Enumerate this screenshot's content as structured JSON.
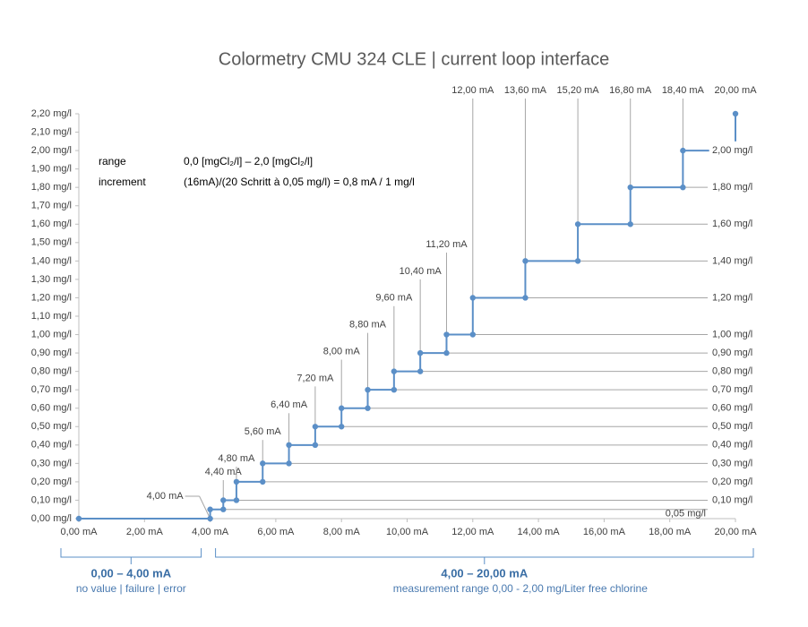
{
  "chart_data": {
    "type": "line",
    "title": "Colormetry CMU 324 CLE  |  current loop interface",
    "xlim": [
      0,
      20
    ],
    "ylim": [
      0,
      2.2
    ],
    "xticks": [
      {
        "value": 0,
        "label": "0,00 mA"
      },
      {
        "value": 2,
        "label": "2,00 mA"
      },
      {
        "value": 4,
        "label": "4,00 mA"
      },
      {
        "value": 6,
        "label": "6,00 mA"
      },
      {
        "value": 8,
        "label": "8,00 mA"
      },
      {
        "value": 10,
        "label": "10,00 mA"
      },
      {
        "value": 12,
        "label": "12,00 mA"
      },
      {
        "value": 14,
        "label": "14,00 mA"
      },
      {
        "value": 16,
        "label": "16,00 mA"
      },
      {
        "value": 18,
        "label": "18,00 mA"
      },
      {
        "value": 20,
        "label": "20,00 mA"
      }
    ],
    "yticks": [
      {
        "value": 0,
        "label": "0,00 mg/l"
      },
      {
        "value": 0.1,
        "label": "0,10 mg/l"
      },
      {
        "value": 0.2,
        "label": "0,20 mg/l"
      },
      {
        "value": 0.3,
        "label": "0,30 mg/l"
      },
      {
        "value": 0.4,
        "label": "0,40 mg/l"
      },
      {
        "value": 0.5,
        "label": "0,50 mg/l"
      },
      {
        "value": 0.6,
        "label": "0,60 mg/l"
      },
      {
        "value": 0.7,
        "label": "0,70 mg/l"
      },
      {
        "value": 0.8,
        "label": "0,80 mg/l"
      },
      {
        "value": 0.9,
        "label": "0,90 mg/l"
      },
      {
        "value": 1.0,
        "label": "1,00 mg/l"
      },
      {
        "value": 1.1,
        "label": "1,10 mg/l"
      },
      {
        "value": 1.2,
        "label": "1,20 mg/l"
      },
      {
        "value": 1.3,
        "label": "1,30 mg/l"
      },
      {
        "value": 1.4,
        "label": "1,40 mg/l"
      },
      {
        "value": 1.5,
        "label": "1,50 mg/l"
      },
      {
        "value": 1.6,
        "label": "1,60 mg/l"
      },
      {
        "value": 1.7,
        "label": "1,70 mg/l"
      },
      {
        "value": 1.8,
        "label": "1,80 mg/l"
      },
      {
        "value": 1.9,
        "label": "1,90 mg/l"
      },
      {
        "value": 2.0,
        "label": "2,00 mg/l"
      },
      {
        "value": 2.1,
        "label": "2,10 mg/l"
      },
      {
        "value": 2.2,
        "label": "2,20 mg/l"
      }
    ],
    "series": [
      {
        "color": "#5b8fc7",
        "x": [
          0,
          4,
          4,
          4.4,
          4.4,
          4.8,
          4.8,
          5.6,
          5.6,
          6.4,
          6.4,
          7.2,
          7.2,
          8,
          8,
          8.8,
          8.8,
          9.6,
          9.6,
          10.4,
          10.4,
          11.2,
          11.2,
          12,
          12,
          13.6,
          13.6,
          15.2,
          15.2,
          16.8,
          16.8,
          18.4,
          18.4,
          19.2
        ],
        "values": [
          0,
          0,
          0.05,
          0.05,
          0.1,
          0.1,
          0.2,
          0.2,
          0.3,
          0.3,
          0.4,
          0.4,
          0.5,
          0.5,
          0.6,
          0.6,
          0.7,
          0.7,
          0.8,
          0.8,
          0.9,
          0.9,
          1.0,
          1.0,
          1.2,
          1.2,
          1.4,
          1.4,
          1.6,
          1.6,
          1.8,
          1.8,
          2.0,
          2.0
        ]
      },
      {
        "color": "#5b8fc7",
        "x": [
          20,
          20
        ],
        "values": [
          2.2,
          2.05
        ]
      }
    ],
    "current_labels": [
      {
        "value": 4,
        "label": "4,00 mA"
      },
      {
        "value": 4.4,
        "label": "4,40 mA"
      },
      {
        "value": 4.8,
        "label": "4,80 mA"
      },
      {
        "value": 5.6,
        "label": "5,60 mA"
      },
      {
        "value": 6.4,
        "label": "6,40 mA"
      },
      {
        "value": 7.2,
        "label": "7,20 mA"
      },
      {
        "value": 8,
        "label": "8,00 mA"
      },
      {
        "value": 8.8,
        "label": "8,80 mA"
      },
      {
        "value": 9.6,
        "label": "9,60 mA"
      },
      {
        "value": 10.4,
        "label": "10,40 mA"
      },
      {
        "value": 11.2,
        "label": "11,20 mA"
      },
      {
        "value": 12,
        "label": "12,00 mA"
      },
      {
        "value": 13.6,
        "label": "13,60 mA"
      },
      {
        "value": 15.2,
        "label": "15,20 mA"
      },
      {
        "value": 16.8,
        "label": "16,80 mA"
      },
      {
        "value": 18.4,
        "label": "18,40 mA"
      },
      {
        "value": 20,
        "label": "20,00 mA"
      }
    ],
    "level_labels": [
      {
        "value": 0.05,
        "label": "0,05 mg/l"
      },
      {
        "value": 0.1,
        "label": "0,10 mg/l"
      },
      {
        "value": 0.2,
        "label": "0,20 mg/l"
      },
      {
        "value": 0.3,
        "label": "0,30 mg/l"
      },
      {
        "value": 0.4,
        "label": "0,40 mg/l"
      },
      {
        "value": 0.5,
        "label": "0,50 mg/l"
      },
      {
        "value": 0.6,
        "label": "0,60 mg/l"
      },
      {
        "value": 0.7,
        "label": "0,70 mg/l"
      },
      {
        "value": 0.8,
        "label": "0,80 mg/l"
      },
      {
        "value": 0.9,
        "label": "0,90 mg/l"
      },
      {
        "value": 1.0,
        "label": "1,00 mg/l"
      },
      {
        "value": 1.2,
        "label": "1,20 mg/l"
      },
      {
        "value": 1.4,
        "label": "1,40 mg/l"
      },
      {
        "value": 1.6,
        "label": "1,60 mg/l"
      },
      {
        "value": 1.8,
        "label": "1,80 mg/l"
      },
      {
        "value": 2.0,
        "label": "2,00 mg/l"
      }
    ],
    "info": [
      {
        "key": "range",
        "text": "0,0 [mgCl₂/l] –  2,0 [mgCl₂/l]"
      },
      {
        "key": "increment",
        "text": "(16mA)/(20 Schritt à 0,05 mg/l) = 0,8 mA / 1 mg/l"
      }
    ],
    "ranges": [
      {
        "from": 0,
        "to": 4,
        "title": "0,00 – 4,00 mA",
        "subtitle": "no value  | failure  | error"
      },
      {
        "from": 4,
        "to": 20,
        "title": "4,00 – 20,00 mA",
        "subtitle": "measurement  range  0,00  -  2,00  mg/Liter free chlorine"
      }
    ]
  }
}
